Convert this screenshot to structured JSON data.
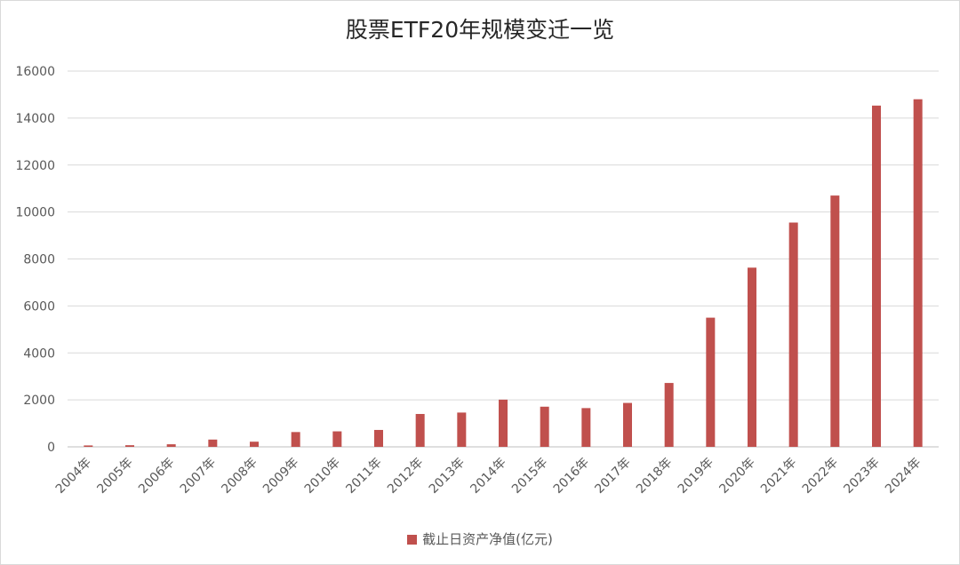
{
  "chart_data": {
    "type": "bar",
    "title": "股票ETF20年规模变迁一览",
    "categories": [
      "2004年",
      "2005年",
      "2006年",
      "2007年",
      "2008年",
      "2009年",
      "2010年",
      "2011年",
      "2012年",
      "2013年",
      "2014年",
      "2015年",
      "2016年",
      "2017年",
      "2018年",
      "2019年",
      "2020年",
      "2021年",
      "2022年",
      "2023年",
      "2024年"
    ],
    "series": [
      {
        "name": "截止日资产净值(亿元)",
        "values": [
          60,
          70,
          110,
          310,
          220,
          630,
          660,
          720,
          1400,
          1460,
          2010,
          1710,
          1650,
          1870,
          2720,
          5500,
          7630,
          9550,
          10700,
          14530,
          14800
        ]
      }
    ],
    "ylim": [
      0,
      16000
    ],
    "yticks": [
      0,
      2000,
      4000,
      6000,
      8000,
      10000,
      12000,
      14000,
      16000
    ],
    "grid": true,
    "legend_position": "bottom",
    "bar_color": "#c0504d"
  }
}
